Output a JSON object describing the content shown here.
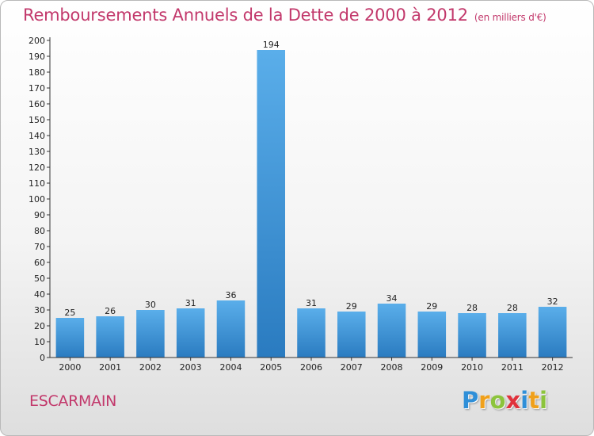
{
  "header": {
    "title": "Remboursements Annuels de la Dette de 2000 à 2012",
    "unit": "(en milliers d'€)"
  },
  "footer": {
    "commune": "ESCARMAIN",
    "logo_letters": [
      {
        "char": "P",
        "color": "#2f8fd8"
      },
      {
        "char": "r",
        "color": "#f0a01a"
      },
      {
        "char": "o",
        "color": "#8cc43c"
      },
      {
        "char": "x",
        "color": "#e0323c"
      },
      {
        "char": "i",
        "color": "#2f8fd8"
      },
      {
        "char": "t",
        "color": "#f0a01a"
      },
      {
        "char": "i",
        "color": "#8cc43c"
      }
    ]
  },
  "chart_data": {
    "type": "bar",
    "title": "Remboursements Annuels de la Dette de 2000 à 2012",
    "xlabel": "",
    "ylabel": "",
    "categories": [
      "2000",
      "2001",
      "2002",
      "2003",
      "2004",
      "2005",
      "2006",
      "2007",
      "2008",
      "2009",
      "2010",
      "2011",
      "2012"
    ],
    "values": [
      25,
      26,
      30,
      31,
      36,
      194,
      31,
      29,
      34,
      29,
      28,
      28,
      32
    ],
    "ylim": [
      0,
      200
    ],
    "ytick_step": 10,
    "grid": false,
    "legend": "none",
    "colors": {
      "bar_light": "#5aaeea",
      "bar_dark": "#2a7bc0",
      "axis": "#333333"
    }
  }
}
